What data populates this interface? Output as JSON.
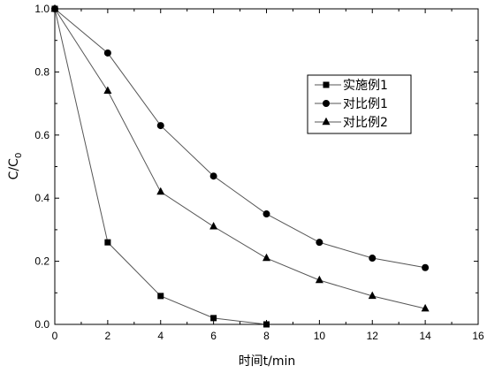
{
  "chart_data": {
    "type": "line",
    "xlabel": "时间t/min",
    "ylabel_main": "C/C",
    "ylabel_sub": "0",
    "xlim": [
      0,
      16
    ],
    "ylim": [
      0.0,
      1.0
    ],
    "xticks": [
      "0",
      "2",
      "4",
      "6",
      "8",
      "10",
      "12",
      "14",
      "16"
    ],
    "yticks": [
      "0.0",
      "0.2",
      "0.4",
      "0.6",
      "0.8",
      "1.0"
    ],
    "grid": false,
    "legend_position": "upper-right",
    "series": [
      {
        "name": "实施例1",
        "marker": "square",
        "x": [
          0,
          2,
          4,
          6,
          8
        ],
        "values": [
          1.0,
          0.26,
          0.09,
          0.02,
          0.0
        ]
      },
      {
        "name": "对比例1",
        "marker": "circle",
        "x": [
          0,
          2,
          4,
          6,
          8,
          10,
          12,
          14
        ],
        "values": [
          1.0,
          0.86,
          0.63,
          0.47,
          0.35,
          0.26,
          0.21,
          0.18
        ]
      },
      {
        "name": "对比例2",
        "marker": "triangle",
        "x": [
          0,
          2,
          4,
          6,
          8,
          10,
          12,
          14
        ],
        "values": [
          1.0,
          0.74,
          0.42,
          0.31,
          0.21,
          0.14,
          0.09,
          0.05
        ]
      }
    ]
  },
  "colors": {
    "line": "#555555",
    "marker": "#000000",
    "axis": "#000000"
  }
}
